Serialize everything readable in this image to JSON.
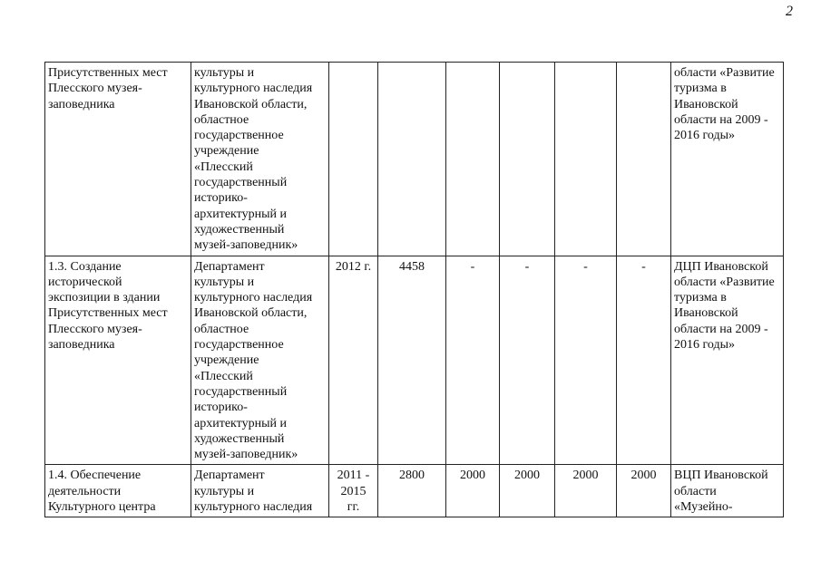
{
  "page_number": "2",
  "rows": [
    {
      "name": "Присутственных мест\nПлесского музея-\nзаповедника",
      "executor": "культуры и\nкультурного наследия\nИвановской области,\nобластное\nгосударственное\nучреждение\n«Плесский\nгосударственный\nисторико-\nархитектурный и\nхудожественный\nмузей-заповедник»",
      "period": "",
      "total": "",
      "v1": "",
      "v2": "",
      "v3": "",
      "v4": "",
      "source": "области «Развитие\nтуризма в\nИвановской\nобласти на 2009 -\n2016 годы»"
    },
    {
      "name": "1.3. Создание\nисторической\nэкспозиции в здании\nПрисутственных мест\nПлесского музея-\nзаповедника",
      "executor": "Департамент\nкультуры и\nкультурного наследия\nИвановской области,\nобластное\nгосударственное\nучреждение\n«Плесский\nгосударственный\nисторико-\nархитектурный и\nхудожественный\nмузей-заповедник»",
      "period": "2012 г.",
      "total": "4458",
      "v1": "-",
      "v2": "-",
      "v3": "-",
      "v4": "-",
      "source": "ДЦП Ивановской\nобласти «Развитие\nтуризма в\nИвановской\nобласти на 2009 -\n2016 годы»"
    },
    {
      "name": "1.4. Обеспечение\nдеятельности\nКультурного центра",
      "executor": "Департамент\nкультуры и\nкультурного наследия",
      "period": "2011 -\n2015\nгг.",
      "total": "2800",
      "v1": "2000",
      "v2": "2000",
      "v3": "2000",
      "v4": "2000",
      "source": "ВЦП Ивановской\nобласти\n«Музейно-"
    }
  ]
}
